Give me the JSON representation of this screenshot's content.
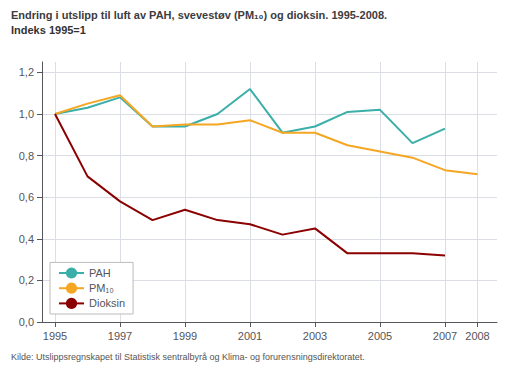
{
  "chart_data": {
    "type": "line",
    "title": "Endring i utslipp til luft av PAH, svevestøv (PM₁₀) og dioksin. 1995-2008.",
    "subtitle": "Indeks 1995=1",
    "source": "Kilde: Utslippsregnskapet til Statistisk sentralbyrå og Klima- og forurensningsdirektoratet.",
    "x": [
      1995,
      1996,
      1997,
      1998,
      1999,
      2000,
      2001,
      2002,
      2003,
      2004,
      2005,
      2006,
      2007,
      2008
    ],
    "series": [
      {
        "name": "PAH",
        "color": "#3AAFA9",
        "values": [
          1.0,
          1.03,
          1.08,
          0.94,
          0.94,
          1.0,
          1.12,
          0.91,
          0.94,
          1.01,
          1.02,
          0.86,
          0.93,
          null
        ]
      },
      {
        "name": "PM₁₀",
        "color": "#F5A623",
        "values": [
          1.0,
          1.05,
          1.09,
          0.94,
          0.95,
          0.95,
          0.97,
          0.91,
          0.91,
          0.85,
          0.82,
          0.79,
          0.73,
          0.71
        ]
      },
      {
        "name": "Dioksin",
        "color": "#8B0000",
        "values": [
          1.0,
          0.7,
          0.58,
          0.49,
          0.54,
          0.49,
          0.47,
          0.42,
          0.45,
          0.33,
          0.33,
          0.33,
          0.32,
          null
        ]
      }
    ],
    "xlim": [
      1994.6,
      2008.6
    ],
    "xticks": [
      1995,
      1997,
      1999,
      2001,
      2003,
      2005,
      2007,
      2008
    ],
    "ylim": [
      0.0,
      1.25
    ],
    "yticks": [
      {
        "value": 0.0,
        "label": "0,0"
      },
      {
        "value": 0.2,
        "label": "0,2"
      },
      {
        "value": 0.4,
        "label": "0,4"
      },
      {
        "value": 0.6,
        "label": "0,6"
      },
      {
        "value": 0.8,
        "label": "0,8"
      },
      {
        "value": 1.0,
        "label": "1,0"
      },
      {
        "value": 1.2,
        "label": "1,2"
      }
    ],
    "grid": true,
    "legend": "lower left"
  }
}
